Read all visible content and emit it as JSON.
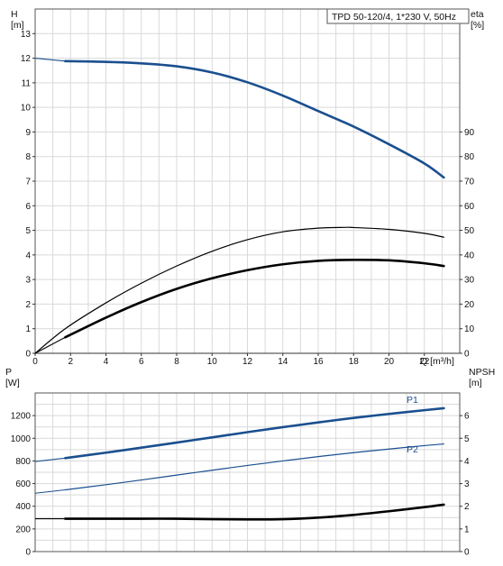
{
  "chart_data": [
    {
      "type": "line",
      "title": "TPD 50-120/4, 1*230 V, 50Hz",
      "xlabel": "Q [m³/h]",
      "ylabel": "H\n[m]",
      "y2label": "eta\n[%]",
      "xlim": [
        0,
        24
      ],
      "ylim": [
        0,
        14
      ],
      "y2lim": [
        0,
        140
      ],
      "x_ticks": [
        0,
        2,
        4,
        6,
        8,
        10,
        12,
        14,
        16,
        18,
        20,
        22
      ],
      "y_ticks": [
        0,
        1,
        2,
        3,
        4,
        5,
        6,
        7,
        8,
        9,
        10,
        11,
        12,
        13
      ],
      "y2_ticks": [
        0,
        10,
        20,
        30,
        40,
        50,
        60,
        70,
        80,
        90
      ],
      "grid": true,
      "colors": {
        "head": "#1a4f8f",
        "eta": "#000000",
        "grid": "#d9d9d9"
      },
      "series": [
        {
          "key": "head",
          "axis": "left",
          "style": "thick",
          "x": [
            0,
            1.7,
            4,
            6,
            8,
            10,
            12,
            14,
            16,
            18,
            20,
            22,
            23.1
          ],
          "values": [
            12.0,
            11.88,
            11.85,
            11.79,
            11.67,
            11.42,
            11.02,
            10.48,
            9.85,
            9.22,
            8.5,
            7.72,
            7.15
          ],
          "dashed_until": 1.7
        },
        {
          "key": "eta_upper",
          "axis": "right",
          "style": "thin",
          "x": [
            0,
            1.7,
            4,
            6,
            8,
            10,
            12,
            14,
            16,
            17.5,
            18,
            20,
            22,
            23.1
          ],
          "values": [
            0,
            10.0,
            20.5,
            28.5,
            35.5,
            41.5,
            46.2,
            49.4,
            50.9,
            51.2,
            51.15,
            50.4,
            48.8,
            47.2
          ]
        },
        {
          "key": "eta_lower",
          "axis": "right",
          "style": "thick",
          "x": [
            0,
            1.7,
            4,
            6,
            8,
            10,
            12,
            14,
            16,
            18,
            20,
            22,
            23.1
          ],
          "values": [
            0,
            6.5,
            14.5,
            20.8,
            26.2,
            30.5,
            33.8,
            36.2,
            37.6,
            38.0,
            37.8,
            36.6,
            35.5
          ],
          "dashed_until": 1.7
        }
      ]
    },
    {
      "type": "line",
      "xlim": [
        0,
        24
      ],
      "ylabel": "P\n[W]",
      "y2label": "NPSH\n[m]",
      "ylim": [
        0,
        1400
      ],
      "y2lim": [
        0,
        7
      ],
      "y_ticks": [
        0,
        200,
        400,
        600,
        800,
        1000,
        1200
      ],
      "y2_ticks": [
        0,
        1,
        2,
        3,
        4,
        5,
        6
      ],
      "grid": true,
      "colors": {
        "p1": "#1a4f8f",
        "p2": "#1a4f8f",
        "npsh": "#000000"
      },
      "series": [
        {
          "name": "P1",
          "axis": "left",
          "style": "thick",
          "x": [
            0,
            1.7,
            4,
            6,
            8,
            10,
            12,
            14,
            16,
            18,
            20,
            22,
            23.1
          ],
          "values": [
            795,
            825,
            873,
            917,
            962,
            1008,
            1054,
            1098,
            1140,
            1180,
            1215,
            1248,
            1265
          ],
          "dashed_until": 1.7
        },
        {
          "name": "P2",
          "axis": "left",
          "style": "thin",
          "x": [
            0,
            1.7,
            4,
            6,
            8,
            10,
            12,
            14,
            16,
            18,
            20,
            22,
            23.1
          ],
          "values": [
            515,
            545,
            590,
            632,
            675,
            718,
            760,
            800,
            838,
            873,
            905,
            935,
            950
          ],
          "dashed_until": 1.7
        },
        {
          "key": "npsh",
          "axis": "right",
          "style": "thick",
          "x": [
            0,
            1.7,
            4,
            6,
            8,
            10,
            12,
            14,
            16,
            18,
            20,
            22,
            23.1
          ],
          "values": [
            1.45,
            1.45,
            1.45,
            1.45,
            1.45,
            1.43,
            1.42,
            1.43,
            1.5,
            1.62,
            1.78,
            1.96,
            2.07
          ],
          "dashed_until": 1.7
        }
      ]
    }
  ]
}
